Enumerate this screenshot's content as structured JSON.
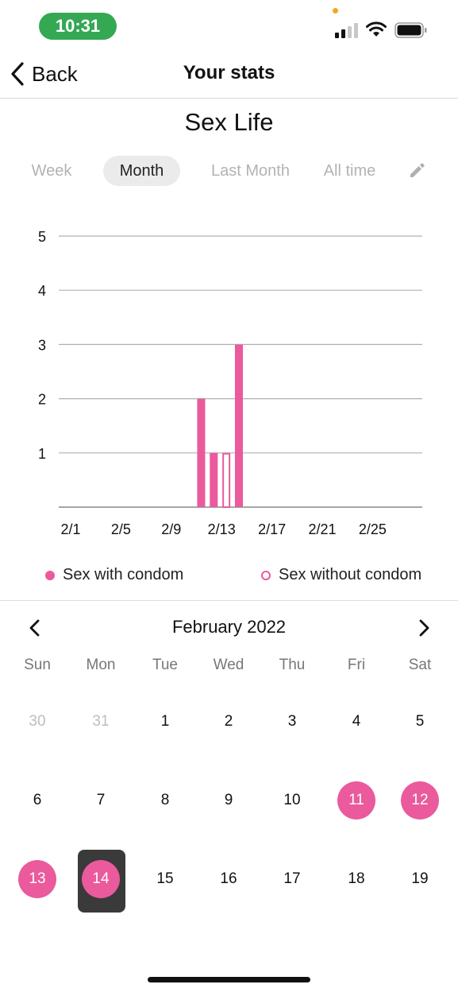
{
  "status_bar": {
    "time": "10:31"
  },
  "nav": {
    "back_label": "Back",
    "title": "Your stats"
  },
  "section_title": "Sex Life",
  "tabs": [
    {
      "label": "Week",
      "active": false
    },
    {
      "label": "Month",
      "active": true
    },
    {
      "label": "Last Month",
      "active": false
    },
    {
      "label": "All time",
      "active": false
    }
  ],
  "chart_data": {
    "type": "bar",
    "x_tick_labels": [
      "2/1",
      "2/5",
      "2/9",
      "2/13",
      "2/17",
      "2/21",
      "2/25"
    ],
    "y_ticks": [
      1,
      2,
      3,
      4,
      5
    ],
    "ylim": [
      0,
      5
    ],
    "series": [
      {
        "name": "Sex with condom",
        "style": "filled",
        "points": [
          {
            "x": "2/11",
            "y": 2
          },
          {
            "x": "2/12",
            "y": 1
          },
          {
            "x": "2/14",
            "y": 3
          }
        ]
      },
      {
        "name": "Sex without condom",
        "style": "hollow",
        "points": [
          {
            "x": "2/13",
            "y": 1
          }
        ]
      }
    ],
    "grid": true,
    "legend_position": "bottom",
    "colors": {
      "bar": "#ea5a9c",
      "grid": "#b0b0b0"
    }
  },
  "legend": [
    {
      "label": "Sex with condom"
    },
    {
      "label": "Sex without condom"
    }
  ],
  "calendar": {
    "month_label": "February 2022",
    "weekdays": [
      "Sun",
      "Mon",
      "Tue",
      "Wed",
      "Thu",
      "Fri",
      "Sat"
    ],
    "weeks": [
      [
        {
          "day": "30",
          "muted": true
        },
        {
          "day": "31",
          "muted": true
        },
        {
          "day": "1"
        },
        {
          "day": "2"
        },
        {
          "day": "3"
        },
        {
          "day": "4"
        },
        {
          "day": "5"
        }
      ],
      [
        {
          "day": "6"
        },
        {
          "day": "7"
        },
        {
          "day": "8"
        },
        {
          "day": "9"
        },
        {
          "day": "10"
        },
        {
          "day": "11",
          "marked": true
        },
        {
          "day": "12",
          "marked": true
        }
      ],
      [
        {
          "day": "13",
          "marked": true
        },
        {
          "day": "14",
          "marked": true,
          "today": true
        },
        {
          "day": "15"
        },
        {
          "day": "16"
        },
        {
          "day": "17"
        },
        {
          "day": "18"
        },
        {
          "day": "19"
        }
      ]
    ]
  },
  "colors": {
    "accent": "#ea5a9c",
    "status_pill": "#34a853",
    "today_box": "#3a3a3a"
  }
}
